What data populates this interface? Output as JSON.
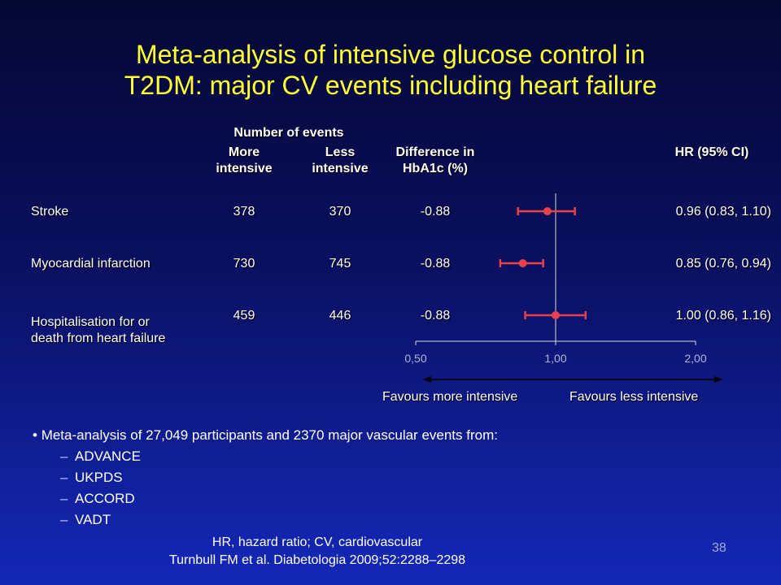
{
  "slide": {
    "title_line1": "Meta-analysis of intensive glucose control in",
    "title_line2": "T2DM: major CV events including heart failure",
    "slide_number": "38"
  },
  "table": {
    "header_events": "Number of events",
    "header_more_1": "More",
    "header_more_2": "intensive",
    "header_less_1": "Less",
    "header_less_2": "intensive",
    "header_diff_1": "Difference in",
    "header_diff_2": "HbA1c (%)",
    "header_hr": "HR (95% CI)",
    "rows": [
      {
        "label_1": "Stroke",
        "label_2": "",
        "more": "378",
        "less": "370",
        "diff": "-0.88",
        "hr_text": "0.96 (0.83, 1.10)"
      },
      {
        "label_1": "Myocardial infarction",
        "label_2": "",
        "more": "730",
        "less": "745",
        "diff": "-0.88",
        "hr_text": "0.85 (0.76, 0.94)"
      },
      {
        "label_1": "Hospitalisation for or",
        "label_2": "death from heart failure",
        "more": "459",
        "less": "446",
        "diff": "-0.88",
        "hr_text": "1.00 (0.86, 1.16)"
      }
    ]
  },
  "chart_data": {
    "type": "forest",
    "scale": "log",
    "xlim": [
      0.5,
      2.0
    ],
    "ticks": [
      0.5,
      1.0,
      2.0
    ],
    "tick_labels": [
      "0,50",
      "1,00",
      "2,00"
    ],
    "reference_line": 1.0,
    "categories": [
      "Stroke",
      "Myocardial infarction",
      "Hospitalisation for or death from heart failure"
    ],
    "hr": [
      0.96,
      0.85,
      1.0
    ],
    "ci_low": [
      0.83,
      0.76,
      0.86
    ],
    "ci_high": [
      1.1,
      0.94,
      1.16
    ],
    "marker_color": "#e8414d",
    "favours_left": "Favours more intensive",
    "favours_right": "Favours less intensive"
  },
  "bullets": {
    "main": "Meta-analysis of 27,049 participants and 2370 major vascular events from:",
    "subs": [
      "ADVANCE",
      "UKPDS",
      "ACCORD",
      "VADT"
    ]
  },
  "footnote": {
    "line1": "HR, hazard ratio; CV, cardiovascular",
    "line2": "Turnbull FM et al. Diabetologia 2009;52:2288–2298"
  }
}
